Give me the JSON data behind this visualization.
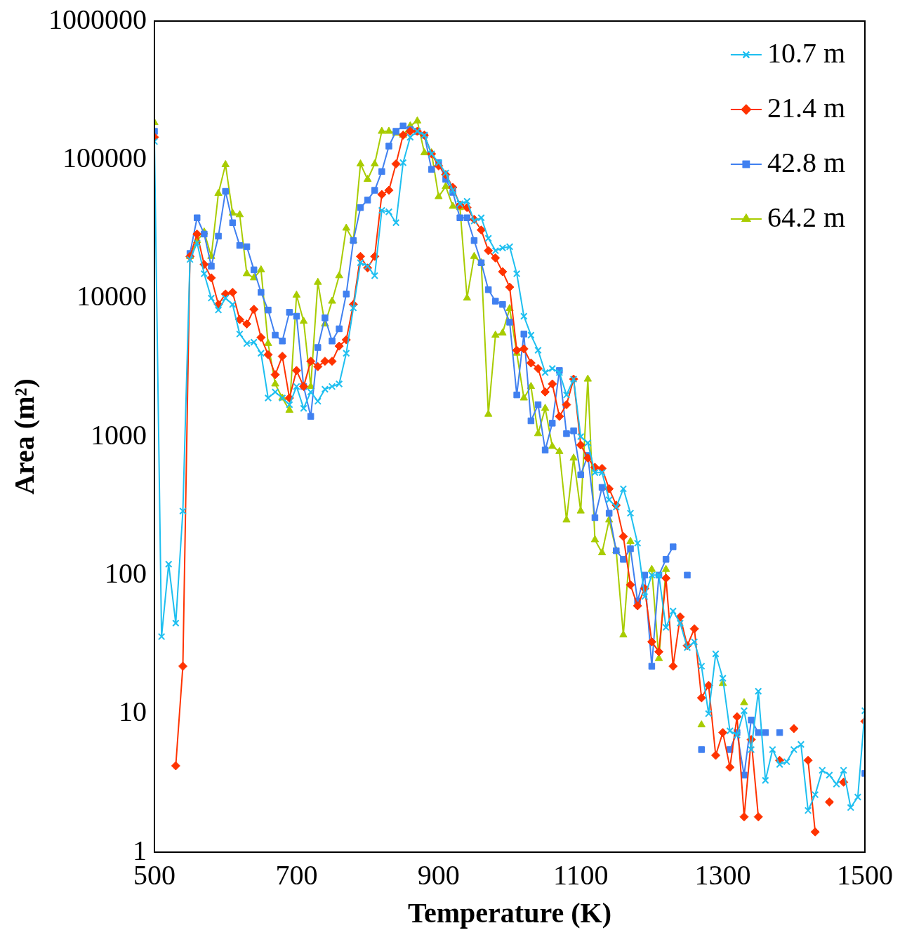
{
  "chart_data": {
    "type": "line",
    "xlabel": "Temperature (K)",
    "ylabel": "Area (m²)",
    "xlim": [
      500,
      1500
    ],
    "xticks": [
      500,
      700,
      900,
      1100,
      1300,
      1500
    ],
    "ylim": [
      1,
      1000000
    ],
    "yticks": [
      1,
      10,
      100,
      1000,
      10000,
      100000,
      1000000
    ],
    "log": true,
    "grid": false,
    "legend": "top right",
    "line_style": "solid",
    "x": [
      500,
      510,
      520,
      530,
      540,
      550,
      560,
      570,
      580,
      590,
      600,
      610,
      620,
      630,
      640,
      650,
      660,
      670,
      680,
      690,
      700,
      710,
      720,
      730,
      740,
      750,
      760,
      770,
      780,
      790,
      800,
      810,
      820,
      830,
      840,
      850,
      860,
      870,
      880,
      890,
      900,
      910,
      920,
      930,
      940,
      950,
      960,
      970,
      980,
      990,
      1000,
      1010,
      1020,
      1030,
      1040,
      1050,
      1060,
      1070,
      1080,
      1090,
      1100,
      1110,
      1120,
      1130,
      1140,
      1150,
      1160,
      1170,
      1180,
      1190,
      1200,
      1210,
      1220,
      1230,
      1240,
      1250,
      1260,
      1270,
      1280,
      1290,
      1300,
      1310,
      1320,
      1330,
      1340,
      1350,
      1360,
      1370,
      1380,
      1390,
      1400,
      1410,
      1420,
      1430,
      1440,
      1450,
      1460,
      1470,
      1480,
      1490,
      1500
    ],
    "series": [
      {
        "name": "10.7 m",
        "color": "#1ebff0",
        "marker": "cross",
        "values": [
          135000,
          36,
          120,
          45,
          290,
          19000,
          25000,
          15000,
          10000,
          8200,
          10000,
          9000,
          5500,
          4700,
          4800,
          4000,
          1900,
          2100,
          1900,
          1700,
          2300,
          1600,
          2100,
          1800,
          2200,
          2300,
          2400,
          4000,
          8500,
          18000,
          17000,
          14500,
          43000,
          42000,
          35000,
          95000,
          145000,
          160000,
          150000,
          110000,
          95000,
          80000,
          60000,
          48000,
          50000,
          36000,
          38000,
          27000,
          22000,
          23000,
          23500,
          15000,
          7400,
          5400,
          4200,
          2900,
          3100,
          2900,
          2000,
          2600,
          1000,
          900,
          550,
          550,
          350,
          310,
          420,
          280,
          170,
          70,
          100,
          100,
          42,
          55,
          45,
          30,
          33,
          22,
          10,
          27,
          18,
          7.5,
          7,
          10.5,
          5.5,
          14.5,
          3.3,
          5.5,
          4.3,
          4.5,
          5.5,
          6,
          2,
          2.6,
          3.9,
          3.6,
          3.1,
          3.9,
          2.1,
          2.5,
          10.5
        ]
      },
      {
        "name": "21.4 m",
        "color": "#ff3300",
        "marker": "diamond",
        "values": [
          145000,
          null,
          null,
          4.2,
          22,
          20000,
          29000,
          17500,
          14000,
          9000,
          10700,
          11000,
          7000,
          6500,
          8300,
          5200,
          3900,
          2800,
          3800,
          1900,
          3000,
          2300,
          3500,
          3200,
          3500,
          3500,
          4500,
          5000,
          9000,
          20000,
          16500,
          20000,
          56000,
          60000,
          93000,
          150000,
          160000,
          160000,
          150000,
          110000,
          90000,
          78000,
          63000,
          47000,
          45000,
          37000,
          31000,
          22000,
          19500,
          15500,
          12000,
          4200,
          4300,
          3400,
          3100,
          2100,
          2400,
          1400,
          1700,
          2600,
          870,
          700,
          600,
          590,
          420,
          320,
          190,
          85,
          60,
          80,
          33,
          28,
          95,
          22,
          50,
          31,
          41,
          13,
          16,
          5,
          7.3,
          4.1,
          9.5,
          1.8,
          6.5,
          1.8,
          null,
          null,
          4.6,
          null,
          7.8,
          null,
          4.6,
          1.4,
          null,
          2.3,
          null,
          3.2,
          null,
          null,
          8.8
        ]
      },
      {
        "name": "42.8 m",
        "color": "#4080f0",
        "marker": "square",
        "values": [
          160000,
          null,
          null,
          null,
          null,
          21000,
          38000,
          29000,
          17000,
          28000,
          59000,
          35000,
          24000,
          23500,
          16000,
          11000,
          8200,
          5400,
          4900,
          7900,
          7400,
          2300,
          1400,
          4400,
          7200,
          4900,
          6000,
          10700,
          26000,
          45000,
          51000,
          60000,
          82000,
          125000,
          160000,
          175000,
          165000,
          160000,
          150000,
          85000,
          95000,
          72000,
          58000,
          38000,
          38000,
          26000,
          18000,
          11500,
          9500,
          9000,
          6700,
          2000,
          5500,
          1300,
          1700,
          800,
          1250,
          3000,
          1050,
          1100,
          530,
          730,
          260,
          430,
          280,
          150,
          130,
          155,
          65,
          100,
          22,
          100,
          130,
          160,
          null,
          100,
          null,
          5.5,
          null,
          null,
          null,
          5.5,
          7.3,
          3.6,
          9,
          7.3,
          7.3,
          null,
          7.3,
          null,
          null,
          null,
          null,
          null,
          null,
          null,
          null,
          null,
          null,
          null,
          3.7
        ]
      },
      {
        "name": "64.2 m",
        "color": "#a8cc00",
        "marker": "triangle",
        "values": [
          185000,
          null,
          null,
          null,
          null,
          20000,
          26000,
          30000,
          20000,
          57000,
          92000,
          41000,
          40000,
          15000,
          14000,
          16000,
          4700,
          2400,
          1900,
          1550,
          10500,
          6800,
          2300,
          13000,
          6500,
          9500,
          14500,
          32000,
          26000,
          93000,
          72000,
          93000,
          160000,
          160000,
          155000,
          150000,
          175000,
          190000,
          112000,
          112000,
          54000,
          64000,
          46000,
          45000,
          10000,
          20000,
          18000,
          1450,
          5400,
          5600,
          8400,
          4000,
          1900,
          2300,
          1050,
          1600,
          850,
          780,
          250,
          700,
          290,
          2600,
          180,
          145,
          250,
          150,
          37,
          175,
          null,
          null,
          110,
          25,
          110,
          null,
          null,
          null,
          null,
          8.3,
          null,
          null,
          16.5,
          null,
          null,
          12,
          null,
          null,
          null,
          null,
          null,
          null,
          null,
          null,
          null,
          null,
          null,
          null,
          null,
          null,
          null,
          null,
          null
        ]
      }
    ]
  }
}
